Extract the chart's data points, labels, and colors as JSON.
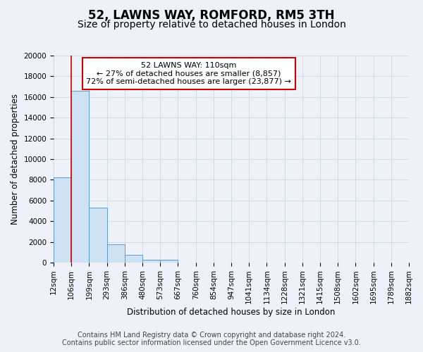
{
  "title": "52, LAWNS WAY, ROMFORD, RM5 3TH",
  "subtitle": "Size of property relative to detached houses in London",
  "xlabel": "Distribution of detached houses by size in London",
  "ylabel": "Number of detached properties",
  "bar_values": [
    8200,
    16600,
    5300,
    1800,
    750,
    280,
    280,
    0,
    0,
    0,
    0,
    0,
    0,
    0,
    0,
    0,
    0,
    0,
    0,
    0
  ],
  "bin_labels": [
    "12sqm",
    "106sqm",
    "199sqm",
    "293sqm",
    "386sqm",
    "480sqm",
    "573sqm",
    "667sqm",
    "760sqm",
    "854sqm",
    "947sqm",
    "1041sqm",
    "1134sqm",
    "1228sqm",
    "1321sqm",
    "1415sqm",
    "1508sqm",
    "1602sqm",
    "1695sqm",
    "1789sqm",
    "1882sqm"
  ],
  "bar_color": "#cfe2f3",
  "bar_edge_color": "#5b9bd5",
  "grid_color": "#c8d8e8",
  "background_color": "#eef2f8",
  "vline_x": 1,
  "vline_color": "#cc0000",
  "annotation_title": "52 LAWNS WAY: 110sqm",
  "annotation_line1": "← 27% of detached houses are smaller (8,857)",
  "annotation_line2": "72% of semi-detached houses are larger (23,877) →",
  "annotation_box_color": "#ffffff",
  "annotation_box_edge": "#cc0000",
  "ylim": [
    0,
    20000
  ],
  "yticks": [
    0,
    2000,
    4000,
    6000,
    8000,
    10000,
    12000,
    14000,
    16000,
    18000,
    20000
  ],
  "footer_line1": "Contains HM Land Registry data © Crown copyright and database right 2024.",
  "footer_line2": "Contains public sector information licensed under the Open Government Licence v3.0.",
  "title_fontsize": 12,
  "subtitle_fontsize": 10,
  "axis_label_fontsize": 8.5,
  "tick_fontsize": 7.5,
  "footer_fontsize": 7
}
